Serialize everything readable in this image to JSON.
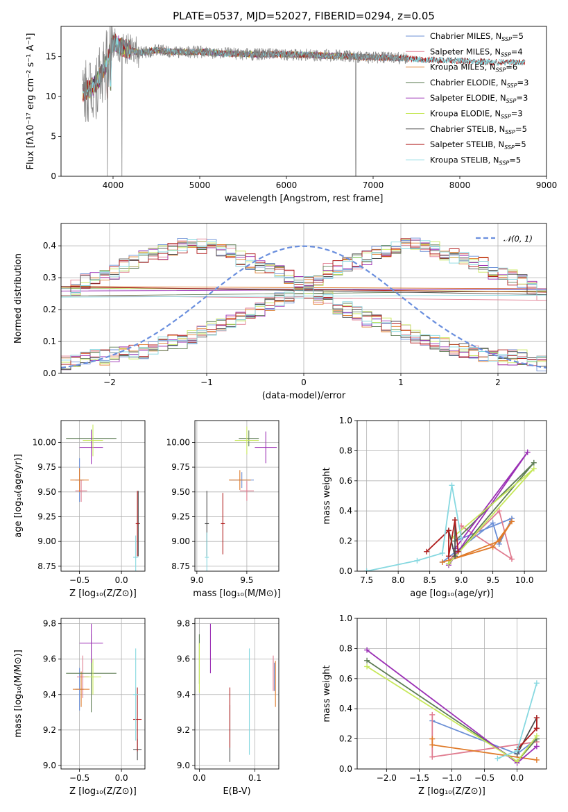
{
  "figure": {
    "title": "PLATE=0537, MJD=52027, FIBERID=0294, z=0.05"
  },
  "colors": {
    "Chabrier MILES": "#6b8fd6",
    "Salpeter MILES": "#e07b8f",
    "Kroupa MILES": "#e07b2a",
    "Chabrier ELODIE": "#5e7d54",
    "Salpeter ELODIE": "#9b30b5",
    "Kroupa ELODIE": "#c7e85a",
    "Chabrier STELIB": "#4a4a4a",
    "Salpeter STELIB": "#b01d1d",
    "Kroupa STELIB": "#86d8e0",
    "spectrum_data": "#808080",
    "normal_curve": "#6a8fde"
  },
  "chart_data": [
    {
      "id": "spectrum",
      "type": "line",
      "title": "PLATE=0537, MJD=52027, FIBERID=0294, z=0.05",
      "xlabel": "wavelength [Angstrom, rest frame]",
      "ylabel": "Flux [fλ10⁻¹⁷ erg cm⁻² s⁻¹ A⁻¹]",
      "xlim": [
        3400,
        9000
      ],
      "ylim": [
        0,
        18.8
      ],
      "xticks": [
        4000,
        5000,
        6000,
        7000,
        8000,
        9000
      ],
      "yticks": [
        0,
        5,
        10,
        15
      ],
      "legend_position": "upper-right",
      "legend": [
        "Chabrier MILES, N_SSP=5",
        "Salpeter MILES, N_SSP=4",
        "Kroupa MILES, N_SSP=6",
        "Chabrier ELODIE, N_SSP=3",
        "Salpeter ELODIE, N_SSP=3",
        "Kroupa ELODIE, N_SSP=3",
        "Chabrier STELIB, N_SSP=5",
        "Salpeter STELIB, N_SSP=5",
        "Kroupa STELIB, N_SSP=5"
      ],
      "continuum_x": [
        3650,
        3800,
        3900,
        4000,
        4100,
        4300,
        4500,
        4700,
        5000,
        5300,
        5600,
        6000,
        6300,
        6600,
        7000,
        7400,
        7600,
        8000,
        8400,
        8750
      ],
      "continuum_y": [
        10.5,
        11.5,
        13.5,
        16.8,
        16.2,
        15.5,
        15.8,
        15.6,
        15.6,
        15.4,
        15.3,
        15.3,
        15.2,
        15.1,
        14.9,
        14.8,
        14.6,
        14.5,
        14.3,
        14.3
      ]
    },
    {
      "id": "residuals",
      "type": "line",
      "xlabel": "(data-model)/error",
      "ylabel": "Normed distribution",
      "xlim": [
        -2.5,
        2.5
      ],
      "ylim": [
        0,
        0.47
      ],
      "xticks": [
        -2,
        -1,
        0,
        1,
        2
      ],
      "yticks": [
        0.0,
        0.1,
        0.2,
        0.3,
        0.4
      ],
      "legend": [
        "𝒩(0, 1)"
      ],
      "legend_position": "upper-right",
      "bin_edges_start": -2.5,
      "bin_width": 0.1,
      "histogram_values": [
        0.03,
        0.04,
        0.05,
        0.05,
        0.05,
        0.06,
        0.06,
        0.07,
        0.07,
        0.08,
        0.09,
        0.1,
        0.1,
        0.11,
        0.13,
        0.14,
        0.15,
        0.16,
        0.17,
        0.19,
        0.2,
        0.21,
        0.23,
        0.24,
        0.26,
        0.28,
        0.3,
        0.32,
        0.33,
        0.34,
        0.35,
        0.36,
        0.38,
        0.39,
        0.4,
        0.4,
        0.41,
        0.4,
        0.39,
        0.38,
        0.37,
        0.36,
        0.35,
        0.34,
        0.32,
        0.31,
        0.3,
        0.29,
        0.27,
        0.25
      ]
    },
    {
      "id": "age-vs-Z",
      "type": "scatter",
      "xlabel": "Z [log₁₀(Z/Z⊙)]",
      "ylabel": "age  [log₁₀(age/yr)]",
      "xlim": [
        -0.72,
        0.28
      ],
      "ylim": [
        8.7,
        10.22
      ],
      "xticks": [
        -0.5,
        0.0
      ],
      "yticks": [
        8.75,
        9.0,
        9.25,
        9.5,
        9.75,
        10.0
      ],
      "points": [
        {
          "model": "Chabrier MILES",
          "x": -0.5,
          "y": 9.62,
          "xerr": 0.05,
          "yerr": 0.22
        },
        {
          "model": "Salpeter MILES",
          "x": -0.48,
          "y": 9.51,
          "xerr": 0.07,
          "yerr": 0.11
        },
        {
          "model": "Kroupa MILES",
          "x": -0.5,
          "y": 9.62,
          "xerr": 0.11,
          "yerr": 0.12
        },
        {
          "model": "Chabrier ELODIE",
          "x": -0.36,
          "y": 10.04,
          "xerr": 0.3,
          "yerr": 0.09
        },
        {
          "model": "Salpeter ELODIE",
          "x": -0.36,
          "y": 9.95,
          "xerr": 0.14,
          "yerr": 0.17
        },
        {
          "model": "Kroupa ELODIE",
          "x": -0.34,
          "y": 10.02,
          "xerr": 0.12,
          "yerr": 0.16
        },
        {
          "model": "Chabrier STELIB",
          "x": 0.2,
          "y": 9.18,
          "xerr": 0.02,
          "yerr": 0.33
        },
        {
          "model": "Salpeter STELIB",
          "x": 0.19,
          "y": 9.18,
          "xerr": 0.02,
          "yerr": 0.33
        },
        {
          "model": "Kroupa STELIB",
          "x": 0.17,
          "y": 8.84,
          "xerr": 0.03,
          "yerr": 0.22
        }
      ]
    },
    {
      "id": "age-vs-mass",
      "type": "scatter",
      "xlabel": "mass [log₁₀(M/M⊙)]",
      "ylabel": "",
      "xlim": [
        8.98,
        9.82
      ],
      "ylim": [
        8.7,
        10.22
      ],
      "xticks": [
        9.0,
        9.5
      ],
      "yticks": [
        8.75,
        9.0,
        9.25,
        9.5,
        9.75,
        10.0
      ],
      "points": [
        {
          "model": "Chabrier MILES",
          "x": 9.45,
          "y": 9.62,
          "xerr": 0.12,
          "yerr": 0.08
        },
        {
          "model": "Salpeter MILES",
          "x": 9.5,
          "y": 9.51,
          "xerr": 0.07,
          "yerr": 0.1
        },
        {
          "model": "Kroupa MILES",
          "x": 9.43,
          "y": 9.62,
          "xerr": 0.11,
          "yerr": 0.1
        },
        {
          "model": "Chabrier ELODIE",
          "x": 9.52,
          "y": 10.04,
          "xerr": 0.1,
          "yerr": 0.08
        },
        {
          "model": "Salpeter ELODIE",
          "x": 9.69,
          "y": 9.95,
          "xerr": 0.11,
          "yerr": 0.16
        },
        {
          "model": "Kroupa ELODIE",
          "x": 9.5,
          "y": 10.02,
          "xerr": 0.12,
          "yerr": 0.14
        },
        {
          "model": "Chabrier STELIB",
          "x": 9.1,
          "y": 9.18,
          "xerr": 0.02,
          "yerr": 0.33
        },
        {
          "model": "Salpeter STELIB",
          "x": 9.26,
          "y": 9.18,
          "xerr": 0.02,
          "yerr": 0.31
        },
        {
          "model": "Kroupa STELIB",
          "x": 9.1,
          "y": 8.84,
          "xerr": 0.02,
          "yerr": 0.25
        }
      ]
    },
    {
      "id": "weight-vs-age",
      "type": "line",
      "xlabel": "age  [log₁₀(age/yr)]",
      "ylabel": "mass weight",
      "xlim": [
        7.35,
        10.35
      ],
      "ylim": [
        0,
        1.0
      ],
      "xticks": [
        7.5,
        8.0,
        8.5,
        9.0,
        9.5,
        10.0
      ],
      "yticks": [
        0.0,
        0.2,
        0.4,
        0.6,
        0.8,
        1.0
      ],
      "series": [
        {
          "model": "Chabrier MILES",
          "x": [
            8.7,
            9.5,
            9.6,
            9.8,
            8.9
          ],
          "y": [
            0.06,
            0.32,
            0.18,
            0.35,
            0.2
          ]
        },
        {
          "model": "Salpeter MILES",
          "x": [
            8.8,
            9.6,
            9.8,
            9.0
          ],
          "y": [
            0.07,
            0.4,
            0.08,
            0.3
          ]
        },
        {
          "model": "Kroupa MILES",
          "x": [
            8.7,
            9.5,
            9.8,
            9.6,
            8.8
          ],
          "y": [
            0.06,
            0.16,
            0.33,
            0.2,
            0.07
          ]
        },
        {
          "model": "Chabrier ELODIE",
          "x": [
            8.8,
            10.15,
            8.9
          ],
          "y": [
            0.05,
            0.72,
            0.2
          ]
        },
        {
          "model": "Salpeter ELODIE",
          "x": [
            8.8,
            10.05,
            8.9
          ],
          "y": [
            0.04,
            0.79,
            0.15
          ]
        },
        {
          "model": "Kroupa ELODIE",
          "x": [
            8.8,
            10.15,
            8.85
          ],
          "y": [
            0.05,
            0.68,
            0.22
          ]
        },
        {
          "model": "Chabrier STELIB",
          "x": [
            8.9,
            8.9,
            8.8
          ],
          "y": [
            0.34,
            0.1,
            0.27
          ]
        },
        {
          "model": "Salpeter STELIB",
          "x": [
            8.45,
            8.8,
            8.8,
            8.9,
            8.95
          ],
          "y": [
            0.13,
            0.27,
            0.1,
            0.34,
            0.13
          ]
        },
        {
          "model": "Kroupa STELIB",
          "x": [
            7.5,
            8.3,
            8.7,
            8.85,
            9.0
          ],
          "y": [
            0.0,
            0.07,
            0.12,
            0.57,
            0.22
          ]
        }
      ]
    },
    {
      "id": "mass-vs-Z",
      "type": "scatter",
      "xlabel": "Z [log₁₀(Z/Z⊙)]",
      "ylabel": "mass [log₁₀(M/M⊙)]",
      "xlim": [
        -0.72,
        0.28
      ],
      "ylim": [
        8.98,
        9.83
      ],
      "xticks": [
        -0.5,
        0.0
      ],
      "yticks": [
        9.0,
        9.2,
        9.4,
        9.6,
        9.8
      ],
      "points": [
        {
          "model": "Chabrier MILES",
          "x": -0.5,
          "y": 9.43,
          "xerr": 0.05,
          "yerr": 0.12
        },
        {
          "model": "Salpeter MILES",
          "x": -0.46,
          "y": 9.5,
          "xerr": 0.07,
          "yerr": 0.12
        },
        {
          "model": "Kroupa MILES",
          "x": -0.48,
          "y": 9.43,
          "xerr": 0.1,
          "yerr": 0.1
        },
        {
          "model": "Chabrier ELODIE",
          "x": -0.36,
          "y": 9.52,
          "xerr": 0.3,
          "yerr": 0.22
        },
        {
          "model": "Salpeter ELODIE",
          "x": -0.36,
          "y": 9.69,
          "xerr": 0.14,
          "yerr": 0.11
        },
        {
          "model": "Kroupa ELODIE",
          "x": -0.34,
          "y": 9.5,
          "xerr": 0.1,
          "yerr": 0.1
        },
        {
          "model": "Chabrier STELIB",
          "x": 0.19,
          "y": 9.09,
          "xerr": 0.05,
          "yerr": 0.06
        },
        {
          "model": "Salpeter STELIB",
          "x": 0.19,
          "y": 9.26,
          "xerr": 0.05,
          "yerr": 0.18
        },
        {
          "model": "Kroupa STELIB",
          "x": 0.17,
          "y": 9.4,
          "xerr": 0.03,
          "yerr": 0.26
        }
      ]
    },
    {
      "id": "mass-vs-EBV",
      "type": "scatter",
      "xlabel": "E(B-V)",
      "ylabel": "",
      "xlim": [
        -0.008,
        0.143
      ],
      "ylim": [
        8.98,
        9.83
      ],
      "xticks": [
        0.0,
        0.1
      ],
      "yticks": [
        9.0,
        9.2,
        9.4,
        9.6,
        9.8
      ],
      "points": [
        {
          "model": "Chabrier MILES",
          "x": 0.135,
          "y": 9.5,
          "xerr": 0,
          "yerr": 0.08
        },
        {
          "model": "Salpeter MILES",
          "x": 0.133,
          "y": 9.52,
          "xerr": 0,
          "yerr": 0.1
        },
        {
          "model": "Kroupa MILES",
          "x": 0.137,
          "y": 9.46,
          "xerr": 0,
          "yerr": 0.13
        },
        {
          "model": "Chabrier ELODIE",
          "x": 0.0,
          "y": 9.6,
          "xerr": 0,
          "yerr": 0.14
        },
        {
          "model": "Salpeter ELODIE",
          "x": 0.02,
          "y": 9.66,
          "xerr": 0,
          "yerr": 0.14
        },
        {
          "model": "Kroupa ELODIE",
          "x": 0.0,
          "y": 9.55,
          "xerr": 0,
          "yerr": 0.14
        },
        {
          "model": "Chabrier STELIB",
          "x": 0.055,
          "y": 9.18,
          "xerr": 0,
          "yerr": 0.16
        },
        {
          "model": "Salpeter STELIB",
          "x": 0.055,
          "y": 9.27,
          "xerr": 0,
          "yerr": 0.17
        },
        {
          "model": "Kroupa STELIB",
          "x": 0.09,
          "y": 9.36,
          "xerr": 0,
          "yerr": 0.3
        }
      ]
    },
    {
      "id": "weight-vs-Z",
      "type": "line",
      "xlabel": "Z [log₁₀(Z/Z⊙)]",
      "ylabel": "mass weight",
      "xlim": [
        -2.45,
        0.45
      ],
      "ylim": [
        0,
        1.0
      ],
      "xticks": [
        -2.0,
        -1.5,
        -1.0,
        -0.5,
        0.0
      ],
      "yticks": [
        0.0,
        0.2,
        0.4,
        0.6,
        0.8,
        1.0
      ],
      "series": [
        {
          "model": "Chabrier MILES",
          "x": [
            -1.3,
            0.0,
            0.3
          ],
          "y": [
            0.32,
            0.1,
            0.2
          ]
        },
        {
          "model": "Salpeter MILES",
          "x": [
            -1.3,
            -1.3,
            0.3
          ],
          "y": [
            0.36,
            0.08,
            0.18
          ]
        },
        {
          "model": "Kroupa MILES",
          "x": [
            -1.3,
            -1.3,
            0.3
          ],
          "y": [
            0.2,
            0.16,
            0.06
          ]
        },
        {
          "model": "Chabrier ELODIE",
          "x": [
            -2.3,
            0.0,
            0.3
          ],
          "y": [
            0.72,
            0.05,
            0.2
          ]
        },
        {
          "model": "Salpeter ELODIE",
          "x": [
            -2.3,
            0.0,
            0.3
          ],
          "y": [
            0.79,
            0.04,
            0.15
          ]
        },
        {
          "model": "Kroupa ELODIE",
          "x": [
            -2.3,
            0.0,
            0.3
          ],
          "y": [
            0.68,
            0.05,
            0.22
          ]
        },
        {
          "model": "Chabrier STELIB",
          "x": [
            0.0,
            0.3,
            0.3
          ],
          "y": [
            0.1,
            0.34,
            0.27
          ]
        },
        {
          "model": "Salpeter STELIB",
          "x": [
            0.0,
            0.3,
            0.3
          ],
          "y": [
            0.13,
            0.27,
            0.34
          ]
        },
        {
          "model": "Kroupa STELIB",
          "x": [
            -0.3,
            0.0,
            0.3
          ],
          "y": [
            0.07,
            0.12,
            0.57
          ]
        }
      ]
    }
  ]
}
